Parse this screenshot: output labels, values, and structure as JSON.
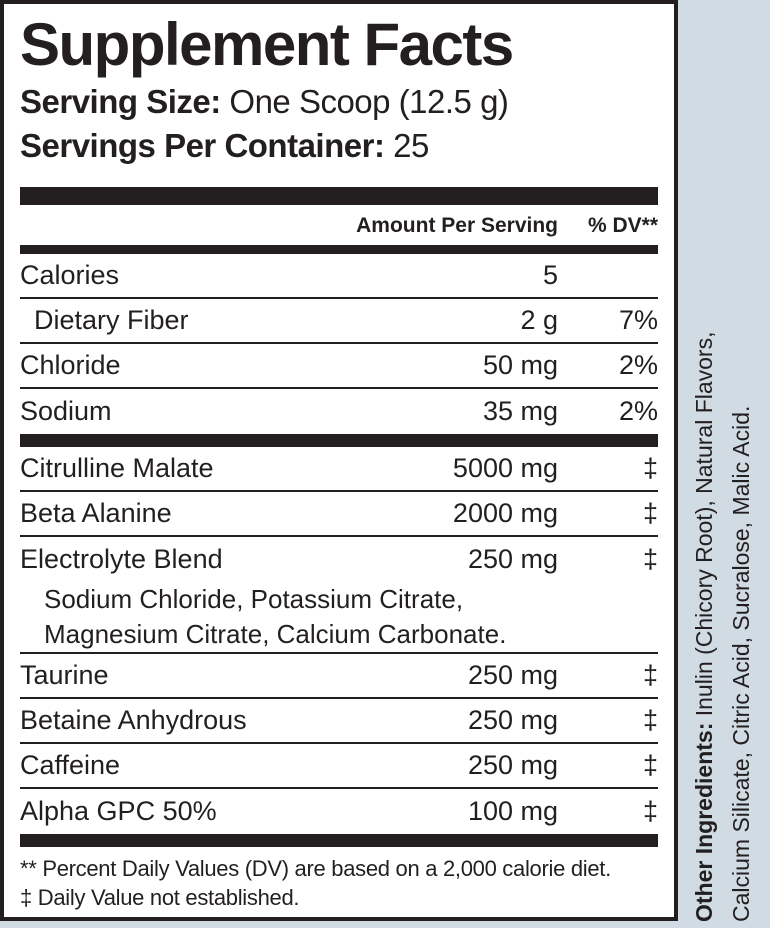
{
  "colors": {
    "background": "#d0dbe3",
    "panel": "#ffffff",
    "ink": "#231f20"
  },
  "label": {
    "title": "Supplement Facts",
    "serving_size_label": "Serving Size:",
    "serving_size_value": " One Scoop (12.5 g)",
    "servings_per_container_label": "Servings Per Container:",
    "servings_per_container_value": " 25"
  },
  "table": {
    "columns": {
      "amount": "Amount Per Serving",
      "dv": "% DV**"
    },
    "rows": [
      {
        "name": "Calories",
        "amount": "5",
        "dv": "",
        "indent": false,
        "sub": [],
        "sep_after": "thin"
      },
      {
        "name": "Dietary Fiber",
        "amount": "2 g",
        "dv": "7%",
        "indent": true,
        "sub": [],
        "sep_after": "thin"
      },
      {
        "name": "Chloride",
        "amount": "50 mg",
        "dv": "2%",
        "indent": false,
        "sub": [],
        "sep_after": "thin"
      },
      {
        "name": "Sodium",
        "amount": "35 mg",
        "dv": "2%",
        "indent": false,
        "sub": [],
        "sep_after": "bar"
      },
      {
        "name": "Citrulline Malate",
        "amount": "5000 mg",
        "dv": "‡",
        "indent": false,
        "sub": [],
        "sep_after": "thin"
      },
      {
        "name": "Beta Alanine",
        "amount": "2000 mg",
        "dv": "‡",
        "indent": false,
        "sub": [],
        "sep_after": "thin"
      },
      {
        "name": "Electrolyte Blend",
        "amount": "250 mg",
        "dv": "‡",
        "indent": false,
        "sub": [
          "Sodium Chloride, Potassium Citrate,",
          "Magnesium Citrate, Calcium Carbonate."
        ],
        "sep_after": "thin"
      },
      {
        "name": "Taurine",
        "amount": "250 mg",
        "dv": "‡",
        "indent": false,
        "sub": [],
        "sep_after": "thin"
      },
      {
        "name": "Betaine Anhydrous",
        "amount": "250 mg",
        "dv": "‡",
        "indent": false,
        "sub": [],
        "sep_after": "thin"
      },
      {
        "name": "Caffeine",
        "amount": "250 mg",
        "dv": "‡",
        "indent": false,
        "sub": [],
        "sep_after": "thin"
      },
      {
        "name": "Alpha GPC 50%",
        "amount": "100 mg",
        "dv": "‡",
        "indent": false,
        "sub": [],
        "sep_after": "bar"
      }
    ]
  },
  "footnotes": {
    "dv_note": "** Percent Daily Values (DV) are based on a 2,000 calorie diet.",
    "dagger_note": "‡ Daily Value not established."
  },
  "other_ingredients": {
    "label": "Other Ingredients:",
    "line1_rest": " Inulin (Chicory Root), Natural Flavors,",
    "line2": "Calcium Silicate, Citric Acid, Sucralose, Malic Acid."
  }
}
